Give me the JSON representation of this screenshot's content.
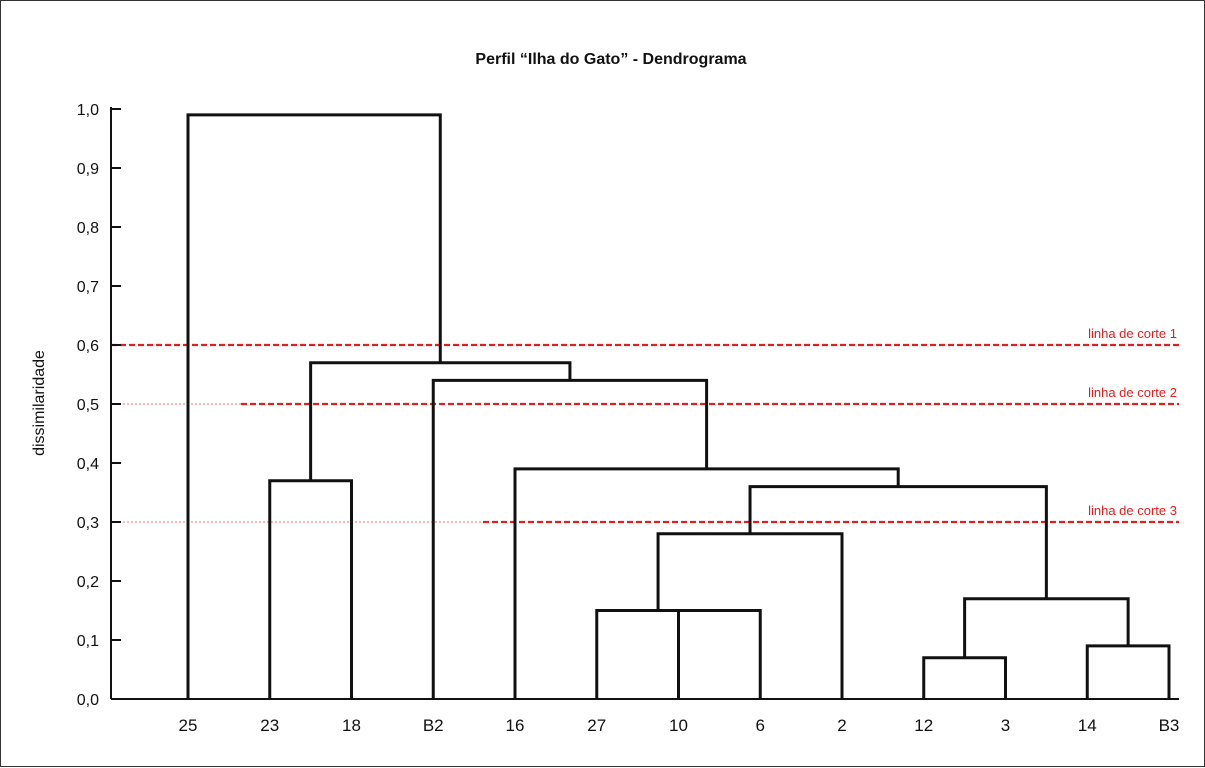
{
  "chart_data": {
    "type": "dendrogram",
    "title": "Perfil “Ilha do Gato” - Dendrograma",
    "ylabel": "dissimilaridade",
    "xlabel": "",
    "ylim": [
      0,
      1.0
    ],
    "y_ticks": [
      "0,0",
      "0,1",
      "0,2",
      "0,3",
      "0,4",
      "0,5",
      "0,6",
      "0,7",
      "0,8",
      "0,9",
      "1,0"
    ],
    "leaves": [
      "25",
      "23",
      "18",
      "B2",
      "16",
      "27",
      "10",
      "6",
      "2",
      "12",
      "3",
      "14",
      "B3"
    ],
    "merges": [
      {
        "left": "12",
        "right": "3",
        "height": 0.07
      },
      {
        "left": "14",
        "right": "B3",
        "height": 0.09
      },
      {
        "left": "10",
        "right": "6",
        "height": 0.15
      },
      {
        "left": "27",
        "right": "10+6",
        "height": 0.15
      },
      {
        "left": "12+3",
        "right": "14+B3",
        "height": 0.17
      },
      {
        "left": "27+10+6",
        "right": "2",
        "height": 0.28
      },
      {
        "left": "27+10+6+2",
        "right": "12+3+14+B3",
        "height": 0.36
      },
      {
        "left": "23",
        "right": "18",
        "height": 0.37
      },
      {
        "left": "16",
        "right": "27+10+6+2+12+3+14+B3",
        "height": 0.39
      },
      {
        "left": "B2",
        "right": "16+27+10+6+2+12+3+14+B3",
        "height": 0.54
      },
      {
        "left": "23+18",
        "right": "B2+16+27+10+6+2+12+3+14+B3",
        "height": 0.57
      },
      {
        "left": "25",
        "right": "23+18+B2+16+27+10+6+2+12+3+14+B3",
        "height": 0.99
      }
    ],
    "cut_lines": [
      {
        "label": "linha de corte 1",
        "value": 0.6
      },
      {
        "label": "linha de corte 2",
        "value": 0.5
      },
      {
        "label": "linha de corte 3",
        "value": 0.3
      }
    ],
    "colors": {
      "tree": "#111111",
      "cut_line": "#e02020",
      "cut_guide": "#f07070",
      "axis": "#111111"
    }
  }
}
